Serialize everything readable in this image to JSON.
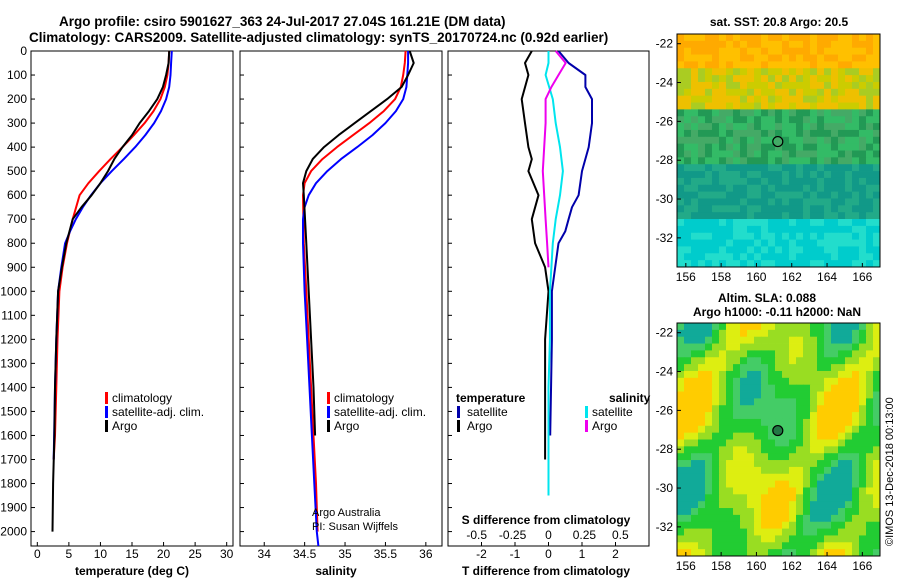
{
  "title": {
    "line1": "Argo profile: csiro 5901627_363 24-Jul-2017 27.04S 161.21E (DM data)",
    "line2": "Climatology: CARS2009. Satellite-adjusted climatology: synTS_20170724.nc (0.92d earlier)"
  },
  "colors": {
    "climatology": "#ff0000",
    "satellite": "#0000ff",
    "argo": "#000000",
    "satellite_t_diff": "#0000aa",
    "satellite_s_diff": "#00e5ee",
    "argo_s_diff": "#ee00ee"
  },
  "credit": {
    "line1": "Argo Australia",
    "line2": "PI: Susan Wijffels"
  },
  "stamp": "©IMOS 13-Dec-2018 00:13:00",
  "chart_data": [
    {
      "type": "line",
      "id": "temperature",
      "xlabel": "temperature (deg C)",
      "xlim": [
        -1,
        31
      ],
      "xticks": [
        0,
        5,
        10,
        15,
        20,
        25,
        30
      ],
      "ylim": [
        2060,
        0
      ],
      "yticks": [
        0,
        100,
        200,
        300,
        400,
        500,
        600,
        700,
        800,
        900,
        1000,
        1100,
        1200,
        1300,
        1400,
        1500,
        1600,
        1700,
        1800,
        1900,
        2000
      ],
      "legend": [
        "climatology",
        "satellite-adj. clim.",
        "Argo"
      ],
      "series": [
        {
          "name": "climatology",
          "color": "#ff0000",
          "x": [
            20.9,
            20.8,
            20.6,
            20.2,
            19.5,
            18.4,
            17.0,
            15.3,
            13.5,
            11.6,
            9.8,
            8.1,
            6.7,
            5.6,
            4.7,
            4.0,
            3.5,
            3.2,
            3.0,
            2.8,
            2.6
          ],
          "y": [
            0,
            50,
            100,
            150,
            200,
            250,
            300,
            350,
            400,
            450,
            500,
            550,
            600,
            700,
            800,
            900,
            1000,
            1200,
            1400,
            1600,
            1700
          ]
        },
        {
          "name": "satellite-adj. clim.",
          "color": "#0000ff",
          "x": [
            21.3,
            21.2,
            21.1,
            20.9,
            20.4,
            19.6,
            18.5,
            17.1,
            15.5,
            13.7,
            11.8,
            10.0,
            8.5,
            7.2,
            6.1,
            5.2,
            4.4,
            3.8,
            3.3,
            3.0,
            2.8,
            2.6
          ],
          "y": [
            0,
            50,
            100,
            150,
            200,
            250,
            300,
            350,
            400,
            450,
            500,
            550,
            600,
            650,
            700,
            750,
            800,
            900,
            1000,
            1200,
            1400,
            1700
          ]
        },
        {
          "name": "Argo",
          "color": "#000000",
          "x": [
            20.9,
            20.8,
            20.4,
            19.9,
            19.0,
            17.7,
            16.2,
            15.0,
            13.5,
            12.2,
            11.2,
            10.0,
            8.6,
            7.0,
            5.6,
            4.6,
            3.9,
            3.3,
            3.0,
            2.8,
            2.7,
            2.5,
            2.4
          ],
          "y": [
            0,
            50,
            100,
            150,
            200,
            250,
            300,
            350,
            400,
            450,
            500,
            550,
            600,
            650,
            700,
            800,
            900,
            1000,
            1200,
            1400,
            1600,
            1800,
            2000
          ]
        }
      ]
    },
    {
      "type": "line",
      "id": "salinity",
      "xlabel": "salinity",
      "xlim": [
        33.7,
        36.2
      ],
      "xticks": [
        34,
        34.5,
        35,
        35.5,
        36
      ],
      "xticklabels": [
        "34",
        "34.5",
        "35",
        "35.5",
        "36"
      ],
      "ylim": [
        2060,
        0
      ],
      "legend": [
        "climatology",
        "satellite-adj. clim.",
        "Argo"
      ],
      "series": [
        {
          "name": "climatology",
          "color": "#ff0000",
          "x": [
            35.75,
            35.74,
            35.72,
            35.69,
            35.62,
            35.48,
            35.3,
            35.1,
            34.9,
            34.72,
            34.58,
            34.5,
            34.48,
            34.49,
            34.52,
            34.55,
            34.58,
            34.61,
            34.64,
            34.66
          ],
          "y": [
            0,
            50,
            100,
            150,
            200,
            250,
            300,
            350,
            400,
            450,
            500,
            550,
            600,
            800,
            1000,
            1200,
            1400,
            1600,
            1800,
            2000
          ]
        },
        {
          "name": "satellite-adj. clim.",
          "color": "#0000ff",
          "x": [
            35.78,
            35.78,
            35.77,
            35.76,
            35.72,
            35.63,
            35.5,
            35.34,
            35.15,
            34.95,
            34.78,
            34.64,
            34.55,
            34.5,
            34.48,
            34.48,
            34.5,
            34.53,
            34.56,
            34.59,
            34.62,
            34.65,
            34.67
          ],
          "y": [
            0,
            50,
            100,
            150,
            200,
            250,
            300,
            350,
            400,
            450,
            500,
            550,
            600,
            650,
            700,
            800,
            1000,
            1200,
            1400,
            1600,
            1800,
            2000,
            2060
          ]
        },
        {
          "name": "Argo",
          "color": "#000000",
          "x": [
            35.8,
            35.85,
            35.78,
            35.7,
            35.52,
            35.32,
            35.12,
            34.92,
            34.74,
            34.6,
            34.52,
            34.48,
            34.49,
            34.52,
            34.55,
            34.58,
            34.61,
            34.63
          ],
          "y": [
            0,
            50,
            100,
            150,
            200,
            250,
            300,
            350,
            400,
            450,
            500,
            550,
            600,
            800,
            1000,
            1200,
            1400,
            1600
          ]
        }
      ]
    },
    {
      "type": "line",
      "id": "difference",
      "xlabel": "T difference from climatology",
      "top_xlabel": "S difference from climatology",
      "xlim": [
        -3,
        3
      ],
      "xticks": [
        -2,
        -1,
        0,
        1,
        2
      ],
      "top_xticks": [
        -0.5,
        -0.25,
        0,
        0.25,
        0.5
      ],
      "top_xticklabels": [
        "-0.5",
        "-0.25",
        "0",
        "0.25",
        "0.5"
      ],
      "ylim": [
        2060,
        0
      ],
      "legend_headers": [
        "temperature",
        "salinity"
      ],
      "legend": [
        "satellite",
        "Argo",
        "satellite",
        "Argo"
      ],
      "series": [
        {
          "name": "temperature satellite",
          "color": "#0000aa",
          "x": [
            0.3,
            0.6,
            1.1,
            1.1,
            1.3,
            1.3,
            1.3,
            1.2,
            1.0,
            0.9,
            0.7,
            0.6,
            0.5,
            0.3,
            0.2,
            0.1,
            0.1,
            0.05
          ],
          "y": [
            0,
            50,
            100,
            150,
            200,
            250,
            300,
            400,
            500,
            600,
            650,
            700,
            750,
            800,
            900,
            1000,
            1200,
            1600
          ]
        },
        {
          "name": "temperature Argo",
          "color": "#000000",
          "x": [
            -0.5,
            -0.7,
            -0.6,
            -0.8,
            -0.7,
            -0.6,
            -0.5,
            -0.6,
            -0.3,
            -0.5,
            -0.4,
            -0.1,
            0.0,
            -0.1,
            -0.1,
            -0.1
          ],
          "y": [
            0,
            50,
            100,
            200,
            300,
            400,
            450,
            500,
            600,
            700,
            800,
            900,
            1000,
            1200,
            1400,
            1700
          ]
        },
        {
          "name": "salinity satellite",
          "color": "#00e5ee",
          "x": [
            0.0,
            0.0,
            -0.02,
            0.03,
            0.05,
            0.08,
            0.1,
            0.08,
            0.05,
            0.03,
            0.02,
            0.01,
            0.01,
            0.0,
            0.0,
            0.0
          ],
          "y": [
            0,
            50,
            100,
            200,
            300,
            400,
            500,
            600,
            700,
            800,
            900,
            1000,
            1200,
            1400,
            1600,
            1850
          ]
        },
        {
          "name": "salinity Argo",
          "color": "#ee00ee",
          "x": [
            0.05,
            0.12,
            0.07,
            0.02,
            -0.02,
            -0.02,
            -0.03,
            -0.04,
            -0.03,
            -0.02,
            -0.01,
            0.0
          ],
          "y": [
            0,
            50,
            100,
            150,
            200,
            300,
            400,
            500,
            600,
            700,
            800,
            900
          ]
        }
      ]
    },
    {
      "type": "heatmap",
      "id": "sst-map",
      "title": "sat. SST: 20.8 Argo: 20.5",
      "xticks": [
        156,
        158,
        160,
        162,
        164,
        166
      ],
      "yticks": [
        -22,
        -24,
        -26,
        -28,
        -30,
        -32
      ],
      "xlim": [
        155.5,
        167.0
      ],
      "ylim": [
        -33.5,
        -21.5
      ],
      "marker": {
        "lon": 161.21,
        "lat": -27.04
      }
    },
    {
      "type": "heatmap",
      "id": "sla-map",
      "title_line1": "Altim. SLA: 0.088",
      "title_line2": "Argo h1000: -0.11 h2000: NaN",
      "xticks": [
        156,
        158,
        160,
        162,
        164,
        166
      ],
      "yticks": [
        -22,
        -24,
        -26,
        -28,
        -30,
        -32
      ],
      "xlim": [
        155.5,
        167.0
      ],
      "ylim": [
        -33.5,
        -21.5
      ],
      "marker": {
        "lon": 161.21,
        "lat": -27.04
      }
    }
  ]
}
